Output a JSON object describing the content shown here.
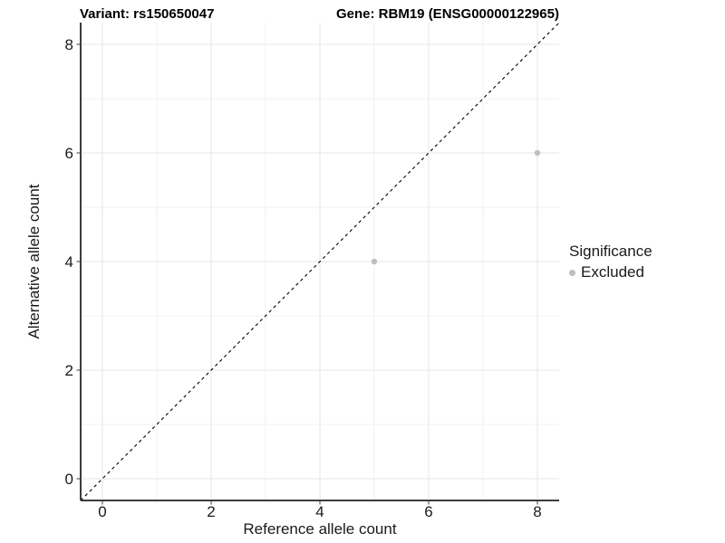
{
  "titles": {
    "left": "Variant: rs150650047",
    "right": "Gene: RBM19 (ENSG00000122965)"
  },
  "chart_data": {
    "type": "scatter",
    "title_left": "Variant: rs150650047",
    "title_right": "Gene: RBM19 (ENSG00000122965)",
    "xlabel": "Reference allele count",
    "ylabel": "Alternative allele count",
    "xlim": [
      -0.4,
      8.4
    ],
    "ylim": [
      -0.4,
      8.4
    ],
    "x_ticks": [
      0,
      2,
      4,
      6,
      8
    ],
    "y_ticks": [
      0,
      2,
      4,
      6,
      8
    ],
    "x_minor_gridlines": [
      1,
      3,
      5,
      7
    ],
    "y_minor_gridlines": [
      1,
      3,
      5,
      7
    ],
    "grid": true,
    "points": [
      {
        "x": 5,
        "y": 4,
        "series": "Excluded"
      },
      {
        "x": 8,
        "y": 6,
        "series": "Excluded"
      }
    ],
    "identity_line": {
      "slope": 1,
      "intercept": 0,
      "style": "dashed",
      "color": "#000000"
    },
    "legend": {
      "title": "Significance",
      "position": "right",
      "entries": [
        {
          "label": "Excluded",
          "color": "#bebebe"
        }
      ]
    },
    "colors": {
      "point": "#bebebe",
      "grid_major": "#e6e6e6",
      "grid_minor": "#f2f2f2",
      "axis_line": "#3c3c3c",
      "tick": "#3c3c3c",
      "tick_label": "#1a1a1a"
    }
  }
}
